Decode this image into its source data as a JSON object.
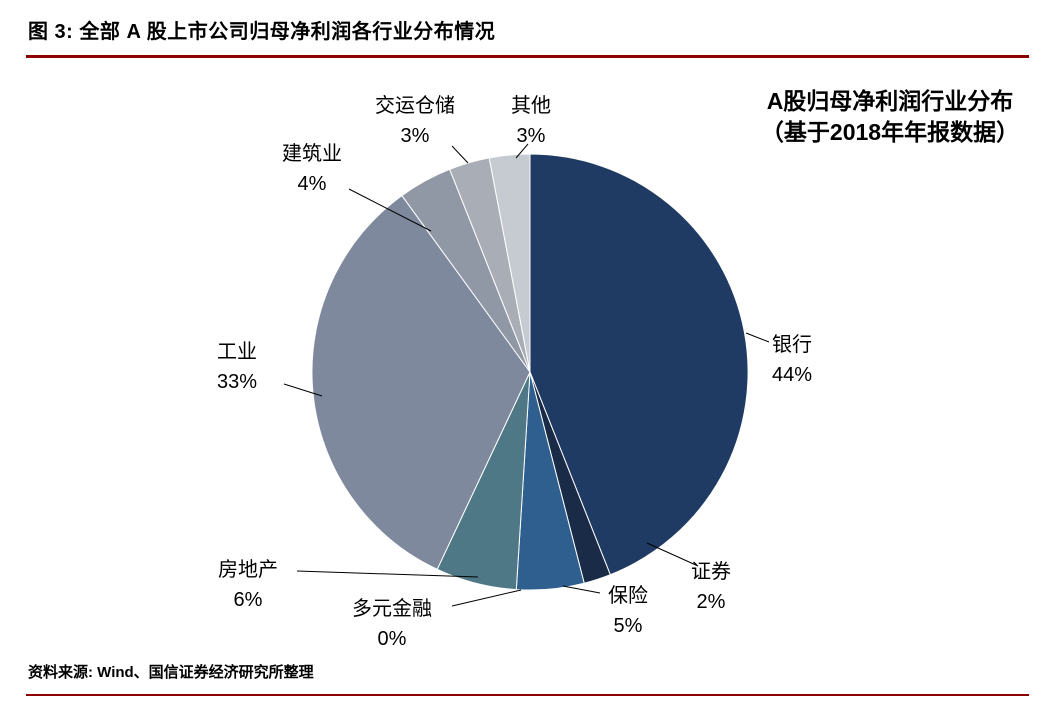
{
  "figure": {
    "title": "图 3:  全部 A 股上市公司归母净利润各行业分布情况",
    "source": "资料来源: Wind、国信证券经济研究所整理",
    "accent_color": "#8B0000"
  },
  "chart_data": {
    "type": "pie",
    "title_line1": "A股归母净利润行业分布",
    "title_line2": "（基于2018年年报数据）",
    "start_angle_deg": 0,
    "direction": "clockwise",
    "value_unit": "%",
    "slices": [
      {
        "label": "银行",
        "value": 44,
        "color": "#1F3A63"
      },
      {
        "label": "证券",
        "value": 2,
        "color": "#1A2B47"
      },
      {
        "label": "保险",
        "value": 5,
        "color": "#2F5F8F"
      },
      {
        "label": "多元金融",
        "value": 0,
        "color": "#4E7BB0"
      },
      {
        "label": "房地产",
        "value": 6,
        "color": "#4F7887"
      },
      {
        "label": "工业",
        "value": 33,
        "color": "#7E899E"
      },
      {
        "label": "建筑业",
        "value": 4,
        "color": "#9097A5"
      },
      {
        "label": "交运仓储",
        "value": 3,
        "color": "#A9ADB5"
      },
      {
        "label": "其他",
        "value": 3,
        "color": "#C6CAD1"
      }
    ]
  }
}
